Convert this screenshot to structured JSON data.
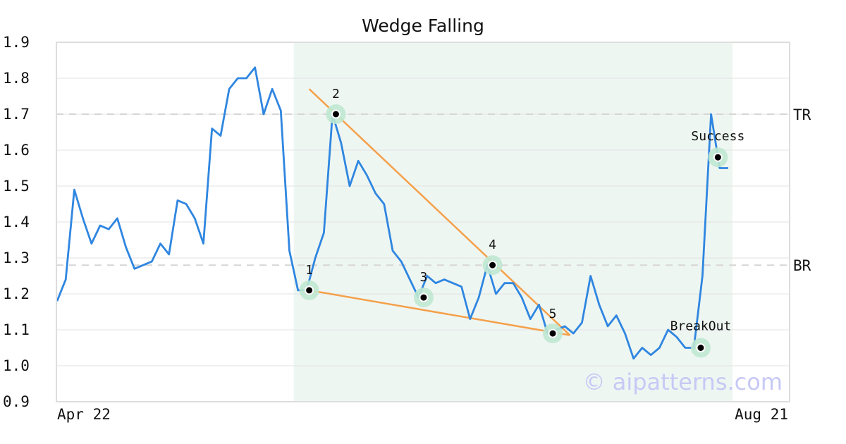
{
  "chart_data": {
    "type": "line",
    "title": "Wedge Falling",
    "x_start_label": "Apr 22",
    "x_end_label": "Aug 21",
    "ylim": [
      0.9,
      1.9
    ],
    "yticks": [
      "0.9",
      "1.0",
      "1.1",
      "1.2",
      "1.3",
      "1.4",
      "1.5",
      "1.6",
      "1.7",
      "1.8",
      "1.9"
    ],
    "grid": true,
    "series": [
      {
        "color": "#2f86e0",
        "values": [
          1.18,
          1.24,
          1.49,
          1.41,
          1.34,
          1.39,
          1.38,
          1.41,
          1.33,
          1.27,
          1.28,
          1.29,
          1.34,
          1.31,
          1.46,
          1.45,
          1.41,
          1.34,
          1.66,
          1.64,
          1.77,
          1.8,
          1.8,
          1.83,
          1.7,
          1.77,
          1.71,
          1.32,
          1.21,
          1.21,
          1.3,
          1.37,
          1.7,
          1.62,
          1.5,
          1.57,
          1.53,
          1.48,
          1.45,
          1.32,
          1.29,
          1.24,
          1.19,
          1.25,
          1.23,
          1.24,
          1.23,
          1.22,
          1.13,
          1.19,
          1.28,
          1.2,
          1.23,
          1.23,
          1.19,
          1.13,
          1.17,
          1.09,
          1.1,
          1.11,
          1.09,
          1.12,
          1.25,
          1.17,
          1.11,
          1.14,
          1.09,
          1.02,
          1.05,
          1.03,
          1.05,
          1.1,
          1.08,
          1.05,
          1.05,
          1.25,
          1.7,
          1.55,
          1.55
        ]
      }
    ],
    "highlight_range_index": [
      27.5,
      78.5
    ],
    "highlight_color": "#eef6f2",
    "reference_lines": [
      {
        "label": "TR",
        "value": 1.7
      },
      {
        "label": "BR",
        "value": 1.28
      }
    ],
    "trendlines": [
      {
        "color": "#f5a04a",
        "from": [
          29.3,
          1.77
        ],
        "to": [
          59.6,
          1.085
        ]
      },
      {
        "color": "#f5a04a",
        "from": [
          29.3,
          1.21
        ],
        "to": [
          59.6,
          1.085
        ]
      }
    ],
    "points": [
      {
        "label": "1",
        "index": 29.3,
        "value": 1.21
      },
      {
        "label": "2",
        "index": 32.4,
        "value": 1.7
      },
      {
        "label": "3",
        "index": 42.6,
        "value": 1.19
      },
      {
        "label": "4",
        "index": 50.6,
        "value": 1.28
      },
      {
        "label": "5",
        "index": 57.6,
        "value": 1.09
      },
      {
        "label": "BreakOut",
        "index": 74.8,
        "value": 1.05
      },
      {
        "label": "Success",
        "index": 76.8,
        "value": 1.58
      }
    ],
    "watermark": "© aipatterns.com"
  }
}
